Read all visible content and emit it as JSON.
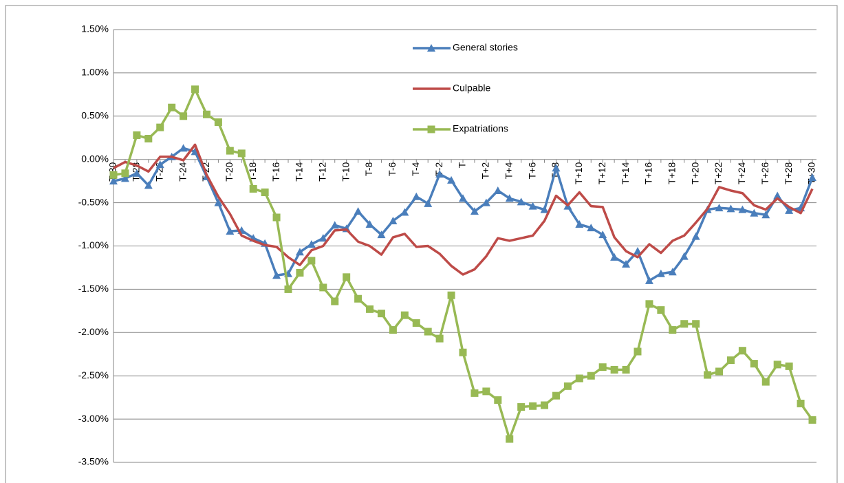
{
  "chart_data": {
    "type": "line",
    "categories": [
      "T-30",
      null,
      "T-28",
      null,
      "T-26",
      null,
      "T-24",
      null,
      "T-22",
      null,
      "T-20",
      null,
      "T-18",
      null,
      "T-16",
      null,
      "T-14",
      null,
      "T-12",
      null,
      "T-10",
      null,
      "T-8",
      null,
      "T-6",
      null,
      "T-4",
      null,
      "T-2",
      null,
      "T",
      null,
      "T+2",
      null,
      "T+4",
      null,
      "T+6",
      null,
      "T+8",
      null,
      "T+10",
      null,
      "T+12",
      null,
      "T+14",
      null,
      "T+16",
      null,
      "T+18",
      null,
      "T+20",
      null,
      "T+22",
      null,
      "T+24",
      null,
      "T+26",
      null,
      "T+28",
      null,
      "T+30"
    ],
    "series": [
      {
        "name": "General stories",
        "color": "#4a7ebb",
        "marker": "triangle",
        "values": [
          -0.25,
          -0.22,
          -0.16,
          -0.3,
          -0.06,
          0.03,
          0.13,
          0.09,
          -0.2,
          -0.5,
          -0.83,
          -0.82,
          -0.91,
          -0.97,
          -1.34,
          -1.32,
          -1.07,
          -0.98,
          -0.91,
          -0.76,
          -0.8,
          -0.6,
          -0.75,
          -0.87,
          -0.71,
          -0.61,
          -0.43,
          -0.51,
          -0.17,
          -0.24,
          -0.45,
          -0.6,
          -0.5,
          -0.36,
          -0.45,
          -0.49,
          -0.54,
          -0.58,
          -0.1,
          -0.54,
          -0.75,
          -0.79,
          -0.87,
          -1.13,
          -1.21,
          -1.06,
          -1.4,
          -1.32,
          -1.3,
          -1.12,
          -0.89,
          -0.58,
          -0.56,
          -0.57,
          -0.58,
          -0.62,
          -0.64,
          -0.42,
          -0.59,
          -0.56,
          -0.21
        ]
      },
      {
        "name": "Culpable",
        "color": "#be4b48",
        "marker": "none",
        "values": [
          -0.1,
          -0.03,
          -0.07,
          -0.14,
          0.03,
          0.03,
          -0.01,
          0.17,
          -0.18,
          -0.43,
          -0.63,
          -0.88,
          -0.94,
          -0.99,
          -1.01,
          -1.13,
          -1.22,
          -1.05,
          -1.0,
          -0.82,
          -0.81,
          -0.95,
          -1.0,
          -1.1,
          -0.9,
          -0.86,
          -1.01,
          -1.0,
          -1.09,
          -1.23,
          -1.33,
          -1.27,
          -1.12,
          -0.91,
          -0.94,
          -0.91,
          -0.88,
          -0.71,
          -0.42,
          -0.53,
          -0.38,
          -0.54,
          -0.55,
          -0.9,
          -1.06,
          -1.13,
          -0.98,
          -1.08,
          -0.94,
          -0.88,
          -0.73,
          -0.57,
          -0.32,
          -0.36,
          -0.39,
          -0.53,
          -0.58,
          -0.45,
          -0.55,
          -0.62,
          -0.34
        ]
      },
      {
        "name": "Expatriations",
        "color": "#98b954",
        "marker": "square",
        "values": [
          -0.18,
          -0.16,
          0.28,
          0.24,
          0.37,
          0.6,
          0.5,
          0.81,
          0.52,
          0.43,
          0.1,
          0.07,
          -0.34,
          -0.38,
          -0.67,
          -1.5,
          -1.31,
          -1.17,
          -1.48,
          -1.64,
          -1.36,
          -1.61,
          -1.73,
          -1.78,
          -1.97,
          -1.8,
          -1.89,
          -1.99,
          -2.07,
          -1.57,
          -2.23,
          -2.7,
          -2.68,
          -2.78,
          -3.23,
          -2.86,
          -2.85,
          -2.84,
          -2.73,
          -2.62,
          -2.53,
          -2.5,
          -2.4,
          -2.43,
          -2.43,
          -2.22,
          -1.67,
          -1.74,
          -1.97,
          -1.9,
          -1.9,
          -2.49,
          -2.45,
          -2.32,
          -2.21,
          -2.36,
          -2.57,
          -2.37,
          -2.39,
          -2.82,
          -3.01
        ]
      }
    ],
    "ylim": [
      -3.5,
      1.5
    ],
    "yticks": [
      {
        "value": 1.5,
        "label": "1.50%"
      },
      {
        "value": 1.0,
        "label": "1.00%"
      },
      {
        "value": 0.5,
        "label": "0.50%"
      },
      {
        "value": 0,
        "label": "0.00%"
      },
      {
        "value": -0.5,
        "label": "-0.50%"
      },
      {
        "value": -1.0,
        "label": "-1.00%"
      },
      {
        "value": -1.5,
        "label": "-1.50%"
      },
      {
        "value": -2.0,
        "label": "-2.00%"
      },
      {
        "value": -2.5,
        "label": "-2.50%"
      },
      {
        "value": -3.0,
        "label": "-3.00%"
      },
      {
        "value": -3.5,
        "label": "-3.50%"
      }
    ],
    "grid": true,
    "legend": "top-center"
  }
}
